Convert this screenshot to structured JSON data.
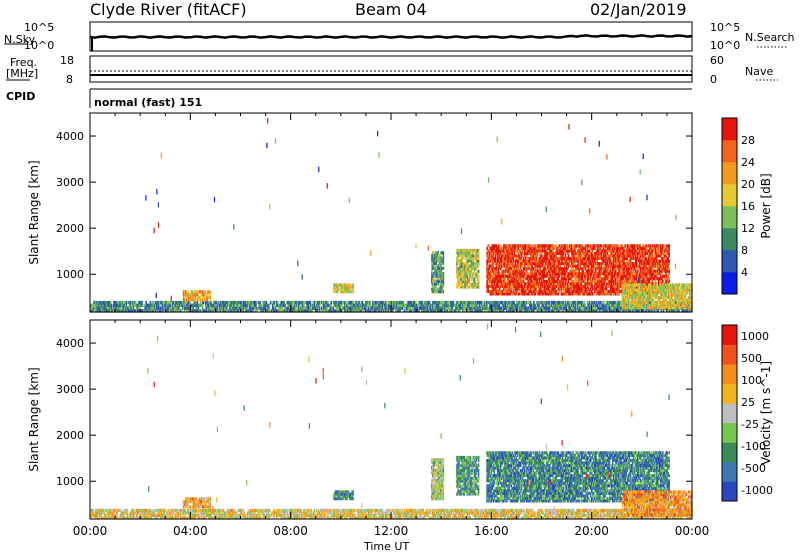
{
  "header": {
    "station": "Clyde River (fitACF)",
    "beam": "Beam 04",
    "date": "02/Jan/2019"
  },
  "panels": {
    "nsky": {
      "label": "N.Sky",
      "ticks_left": [
        "10^5",
        "10^0"
      ],
      "ticks_right": [
        "10^5",
        "10^0"
      ],
      "right_label": "N.Search"
    },
    "freq": {
      "label_line1": "Freq.",
      "label_line2": "[MHz]",
      "ticks_left": [
        "18",
        "8"
      ],
      "ticks_right": [
        "60",
        "0"
      ],
      "right_label": "Nave"
    },
    "cpid": {
      "label": "CPID",
      "mode_text": "normal (fast) 151"
    }
  },
  "chart_data": [
    {
      "type": "heatmap",
      "name": "power",
      "ylabel": "Slant Range [km]",
      "y_ticks": [
        "1000",
        "2000",
        "3000",
        "4000"
      ],
      "ylim": [
        180,
        4500
      ],
      "xlim_hours": [
        0,
        24
      ],
      "colorbar_label": "Power [dB]",
      "colorbar_ticks": [
        "4",
        "8",
        "12",
        "16",
        "20",
        "24",
        "28"
      ],
      "colorbar_colors": [
        "#0a1ee6",
        "#2e58b4",
        "#3c8a64",
        "#7bbf5a",
        "#e6c832",
        "#f59a1e",
        "#f2641e",
        "#e6140a"
      ],
      "regions": [
        {
          "t0": 0.0,
          "t1": 24.0,
          "r0": 180,
          "r1": 420,
          "level": 0.3
        },
        {
          "t0": 3.7,
          "t1": 4.8,
          "r0": 420,
          "r1": 650,
          "level": 0.65
        },
        {
          "t0": 9.7,
          "t1": 10.5,
          "r0": 600,
          "r1": 800,
          "level": 0.55
        },
        {
          "t0": 13.6,
          "t1": 14.1,
          "r0": 600,
          "r1": 1500,
          "level": 0.35
        },
        {
          "t0": 14.6,
          "t1": 15.5,
          "r0": 700,
          "r1": 1550,
          "level": 0.5
        },
        {
          "t0": 15.8,
          "t1": 23.1,
          "r0": 550,
          "r1": 1650,
          "level": 0.9
        },
        {
          "t0": 21.2,
          "t1": 24.0,
          "r0": 250,
          "r1": 800,
          "level": 0.55
        }
      ]
    },
    {
      "type": "heatmap",
      "name": "velocity",
      "ylabel": "Slant Range [km]",
      "y_ticks": [
        "1000",
        "2000",
        "3000",
        "4000"
      ],
      "ylim": [
        180,
        4500
      ],
      "xlim_hours": [
        0,
        24
      ],
      "colorbar_label": "Velocity [m s^-1]",
      "colorbar_ticks": [
        "1000",
        "500",
        "100",
        "25",
        "-25",
        "-100",
        "-500",
        "-1000"
      ],
      "colorbar_colors": [
        "#2a47c0",
        "#3c78b4",
        "#3c8c5a",
        "#78c850",
        "#bebebe",
        "#f0b41e",
        "#f58c1e",
        "#f2501e",
        "#e6140a"
      ],
      "regions": [
        {
          "t0": 0.0,
          "t1": 24.0,
          "r0": 180,
          "r1": 400,
          "level": 0.45
        },
        {
          "t0": 3.7,
          "t1": 4.8,
          "r0": 420,
          "r1": 650,
          "level": 0.35
        },
        {
          "t0": 9.7,
          "t1": 10.5,
          "r0": 600,
          "r1": 800,
          "level": 0.75
        },
        {
          "t0": 13.6,
          "t1": 14.1,
          "r0": 600,
          "r1": 1500,
          "level": 0.55
        },
        {
          "t0": 14.6,
          "t1": 15.5,
          "r0": 700,
          "r1": 1550,
          "level": 0.7
        },
        {
          "t0": 15.8,
          "t1": 23.1,
          "r0": 550,
          "r1": 1650,
          "level": 0.78
        },
        {
          "t0": 21.2,
          "t1": 24.0,
          "r0": 250,
          "r1": 800,
          "level": 0.3
        }
      ]
    }
  ],
  "x_axis": {
    "xlabel": "Time UT",
    "tick_labels": [
      "00:00",
      "04:00",
      "08:00",
      "12:00",
      "16:00",
      "20:00",
      "00:00"
    ]
  }
}
